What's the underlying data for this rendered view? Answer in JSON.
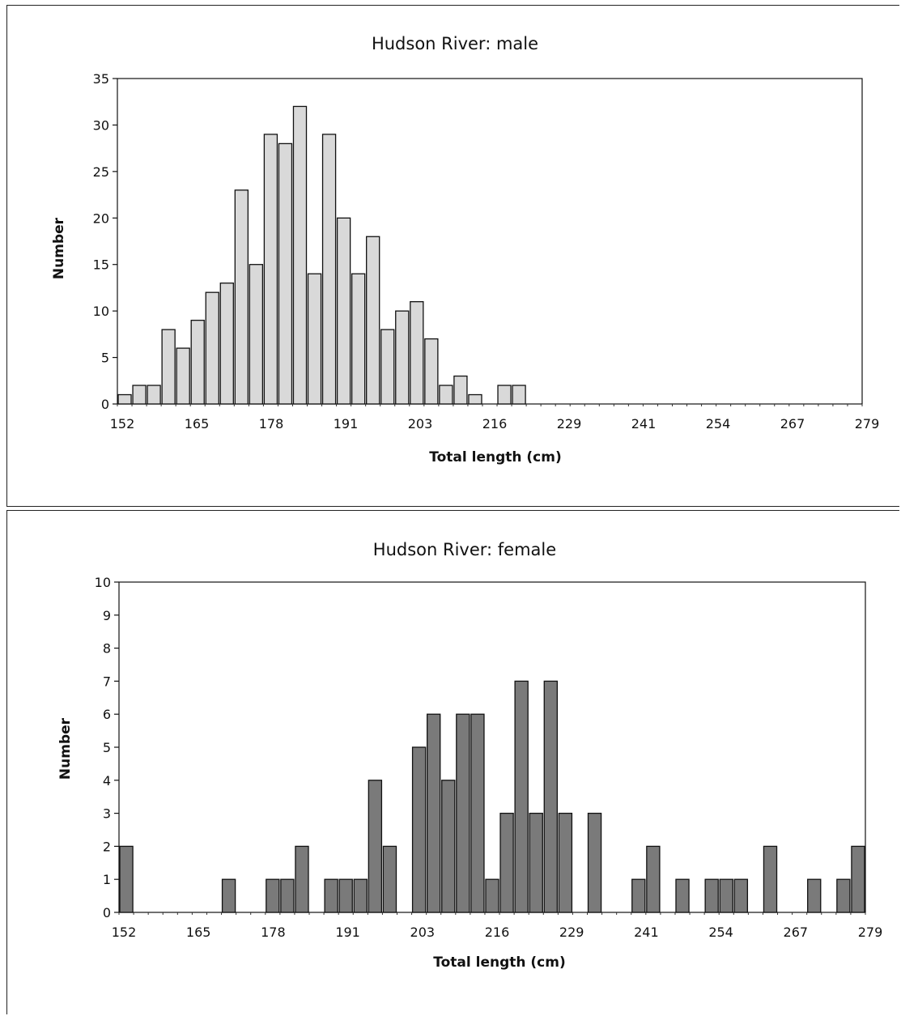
{
  "chart_data": [
    {
      "type": "bar",
      "title": "Hudson River: male",
      "xlabel": "Total length (cm)",
      "ylabel": "Number",
      "ylim": [
        0,
        35
      ],
      "yticks": [
        0,
        5,
        10,
        15,
        20,
        25,
        30,
        35
      ],
      "x_tick_labels": [
        "152",
        "165",
        "178",
        "191",
        "203",
        "216",
        "229",
        "241",
        "254",
        "267",
        "279"
      ],
      "bin_count": 51,
      "bar_fill": "#d9d9d9",
      "values": [
        1,
        2,
        2,
        8,
        6,
        9,
        12,
        13,
        23,
        15,
        29,
        28,
        32,
        14,
        29,
        20,
        14,
        18,
        8,
        10,
        11,
        7,
        2,
        3,
        1,
        0,
        2,
        2,
        0,
        0,
        0,
        0,
        0,
        0,
        0,
        0,
        0,
        0,
        0,
        0,
        0,
        0,
        0,
        0,
        0,
        0,
        0,
        0,
        0,
        0,
        0
      ],
      "grid": false,
      "legend": "none"
    },
    {
      "type": "bar",
      "title": "Hudson River: female",
      "xlabel": "Total length (cm)",
      "ylabel": "Number",
      "ylim": [
        0,
        10
      ],
      "yticks": [
        0,
        1,
        2,
        3,
        4,
        5,
        6,
        7,
        8,
        9,
        10
      ],
      "x_tick_labels": [
        "152",
        "165",
        "178",
        "191",
        "203",
        "216",
        "229",
        "241",
        "254",
        "267",
        "279"
      ],
      "bin_count": 51,
      "bar_fill": "#7a7a7a",
      "values": [
        2,
        0,
        0,
        0,
        0,
        0,
        0,
        1,
        0,
        0,
        1,
        1,
        2,
        0,
        1,
        1,
        1,
        4,
        2,
        0,
        5,
        6,
        4,
        6,
        6,
        1,
        3,
        7,
        3,
        7,
        3,
        0,
        3,
        0,
        0,
        1,
        2,
        0,
        1,
        0,
        1,
        1,
        1,
        0,
        2,
        0,
        0,
        1,
        0,
        1,
        2
      ],
      "grid": false,
      "legend": "none"
    }
  ]
}
